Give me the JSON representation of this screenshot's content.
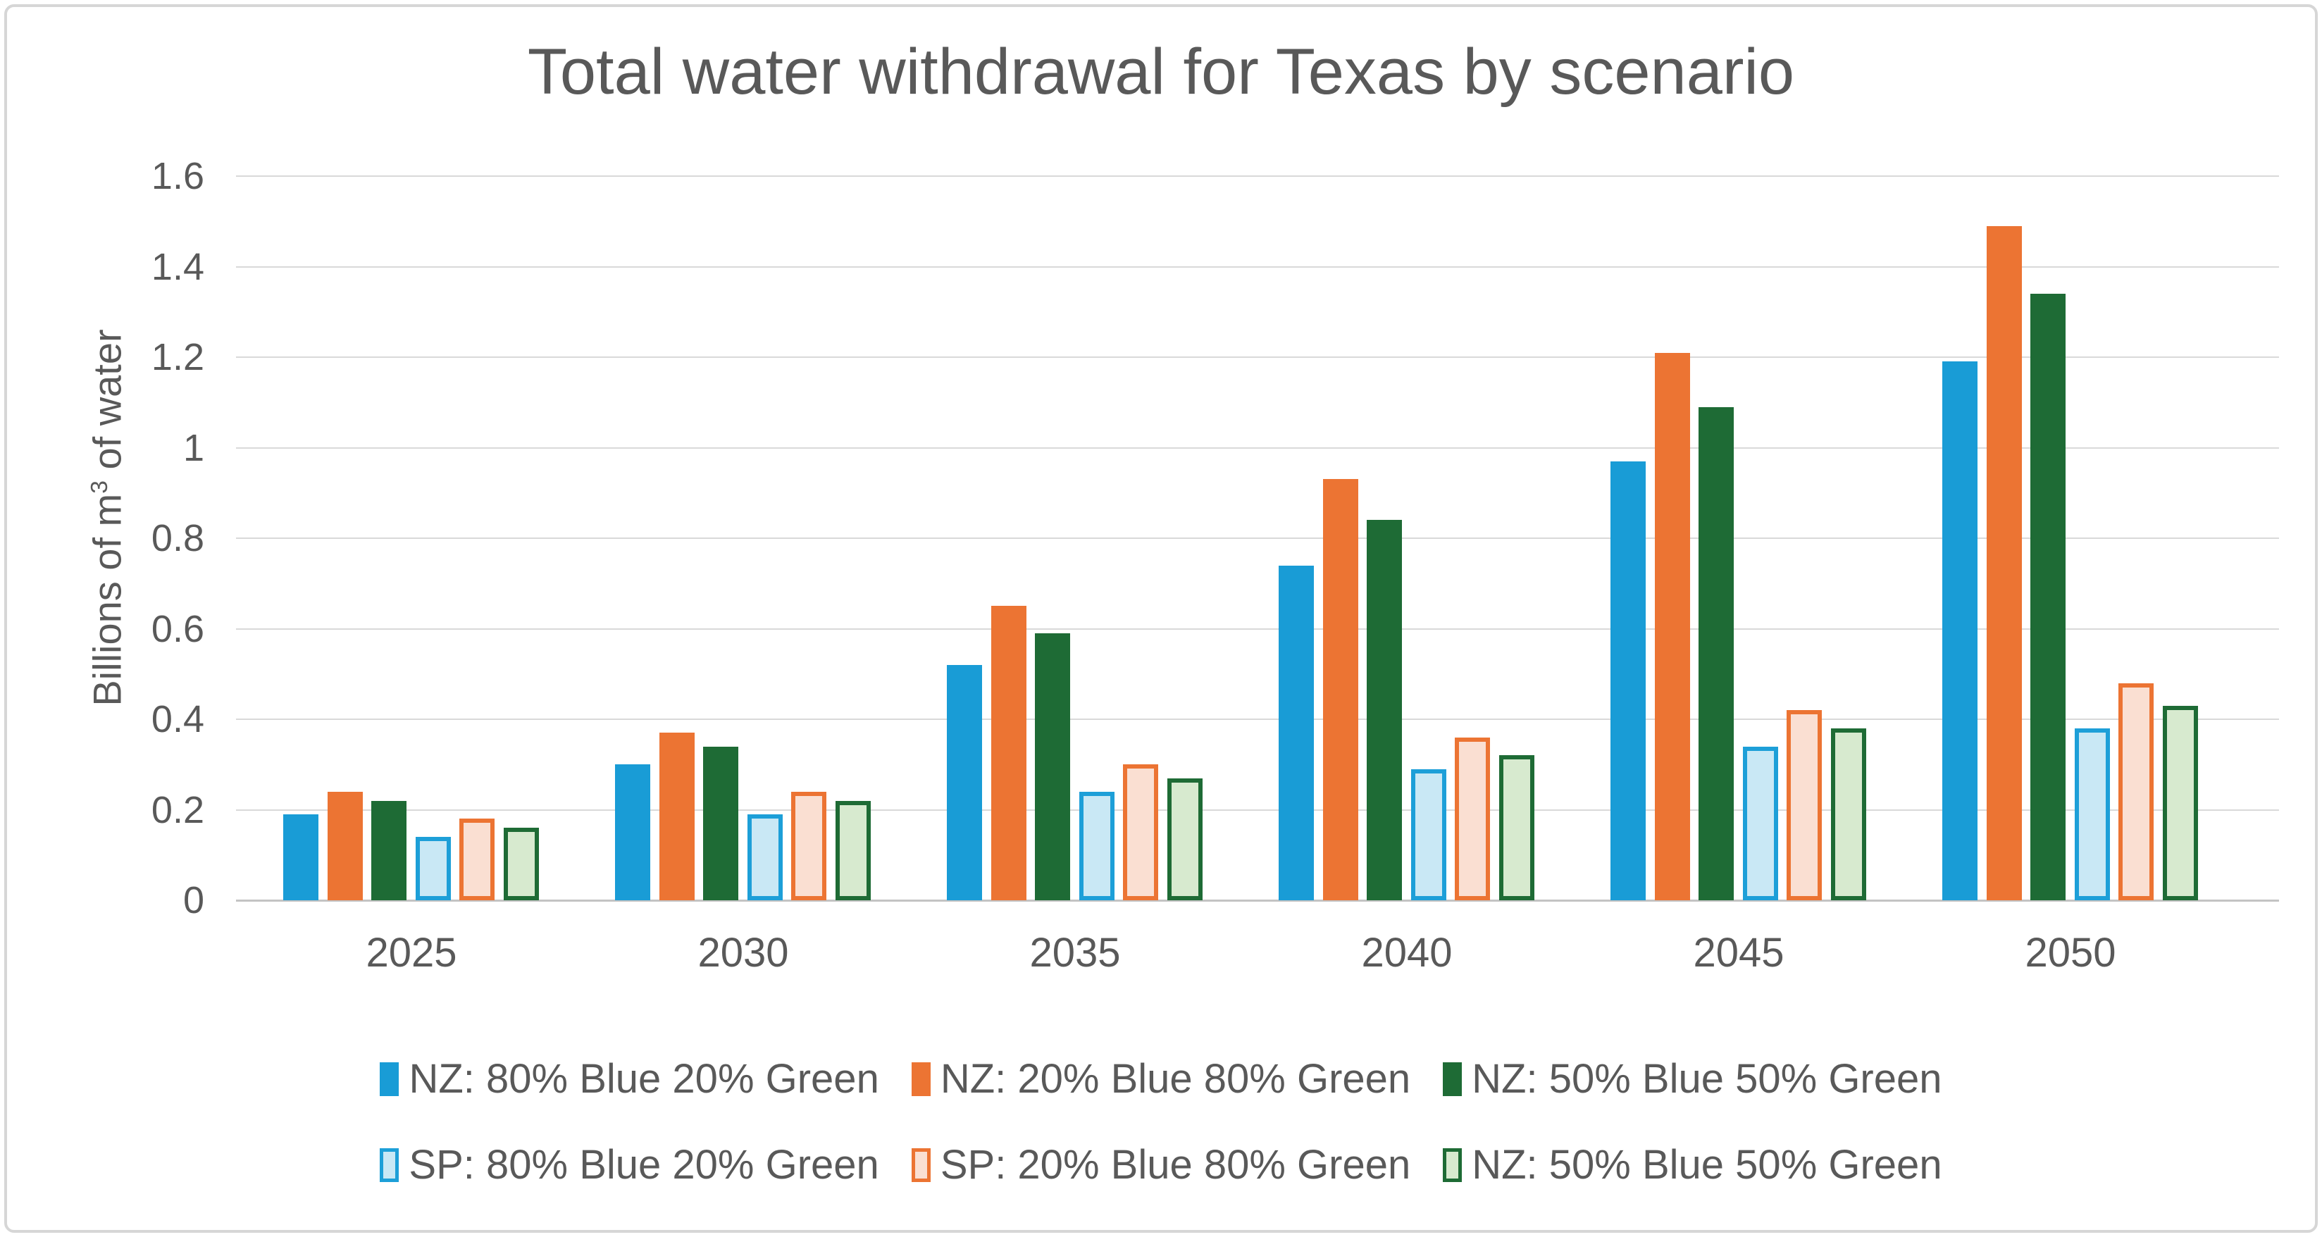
{
  "chart_data": {
    "type": "bar",
    "title": "Total water withdrawal for Texas by scenario",
    "ylabel": {
      "prefix": "Billions of m",
      "sup": "3",
      "suffix": " of water"
    },
    "categories": [
      "2025",
      "2030",
      "2035",
      "2040",
      "2045",
      "2050"
    ],
    "series": [
      {
        "name": "NZ: 80% Blue 20% Green",
        "fill": "#199cd6",
        "border": "",
        "values": [
          0.19,
          0.3,
          0.52,
          0.74,
          0.97,
          1.19
        ]
      },
      {
        "name": "NZ: 20% Blue 80% Green",
        "fill": "#ec7433",
        "border": "",
        "values": [
          0.24,
          0.37,
          0.65,
          0.93,
          1.21,
          1.49
        ]
      },
      {
        "name": "NZ: 50% Blue 50% Green",
        "fill": "#1e6b35",
        "border": "",
        "values": [
          0.22,
          0.34,
          0.59,
          0.84,
          1.09,
          1.34
        ]
      },
      {
        "name": "SP: 80% Blue 20% Green",
        "fill": "#c9e8f5",
        "border": "#1d9fd8",
        "values": [
          0.14,
          0.19,
          0.24,
          0.29,
          0.34,
          0.38
        ]
      },
      {
        "name": "SP: 20% Blue 80% Green",
        "fill": "#fadfd2",
        "border": "#ec7433",
        "values": [
          0.18,
          0.24,
          0.3,
          0.36,
          0.42,
          0.48
        ]
      },
      {
        "name": "NZ: 50% Blue 50% Green",
        "fill": "#d7eacf",
        "border": "#1e6b35",
        "values": [
          0.16,
          0.22,
          0.27,
          0.32,
          0.38,
          0.43
        ]
      }
    ],
    "yticks": [
      {
        "v": 0,
        "label": "0"
      },
      {
        "v": 0.2,
        "label": "0.2"
      },
      {
        "v": 0.4,
        "label": "0.4"
      },
      {
        "v": 0.6,
        "label": "0.6"
      },
      {
        "v": 0.8,
        "label": "0.8"
      },
      {
        "v": 1,
        "label": "1"
      },
      {
        "v": 1.2,
        "label": "1.2"
      },
      {
        "v": 1.4,
        "label": "1.4"
      },
      {
        "v": 1.6,
        "label": "1.6"
      }
    ],
    "ylim": [
      0,
      1.6
    ],
    "legend_rows": [
      [
        0,
        1,
        2
      ],
      [
        3,
        4,
        5
      ]
    ],
    "grid_color": "#d9d9d9",
    "axis_color": "#c3c3c3",
    "text_color": "#595959",
    "legend_position": "bottom",
    "grid": "horizontal"
  }
}
